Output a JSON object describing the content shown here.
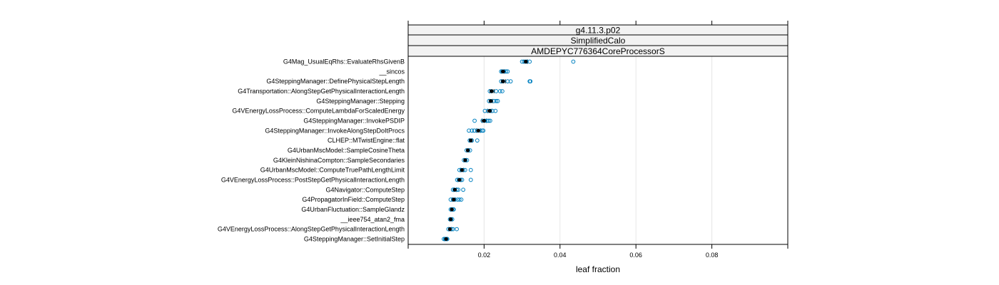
{
  "chart_data": {
    "type": "scatter",
    "strips": [
      "g4.11.3.p02",
      "SimplifiedCalo",
      "AMDEPYC776364CoreProcessorS"
    ],
    "xlabel": "leaf fraction",
    "xlim": [
      0.0,
      0.1
    ],
    "x_ticks": [
      0.02,
      0.04,
      0.06,
      0.08
    ],
    "x_tick_labels": [
      "0.02",
      "0.04",
      "0.06",
      "0.08"
    ],
    "grid": true,
    "colors": {
      "points": "#0080c0",
      "mean": "#000000",
      "grid": "#e6e6e6"
    },
    "rows": [
      {
        "label": "G4Mag_UsualEqRhs::EvaluateRhsGivenB",
        "mean": 0.031,
        "low": 0.0305,
        "high": 0.0315,
        "points": [
          0.03,
          0.0305,
          0.031,
          0.0312,
          0.032,
          0.0435
        ]
      },
      {
        "label": "__sincos",
        "mean": 0.025,
        "low": 0.0245,
        "high": 0.0255,
        "points": [
          0.0245,
          0.0248,
          0.0252,
          0.0258,
          0.0262
        ]
      },
      {
        "label": "G4SteppingManager::DefinePhysicalStepLength",
        "mean": 0.025,
        "low": 0.0245,
        "high": 0.0256,
        "points": [
          0.0245,
          0.025,
          0.0262,
          0.027,
          0.032,
          0.0322
        ]
      },
      {
        "label": "G4Transportation::AlongStepGetPhysicalInteractionLength",
        "mean": 0.022,
        "low": 0.0215,
        "high": 0.0226,
        "points": [
          0.0215,
          0.022,
          0.0232,
          0.0242,
          0.0248
        ]
      },
      {
        "label": "G4SteppingManager::Stepping",
        "mean": 0.0218,
        "low": 0.0213,
        "high": 0.0223,
        "points": [
          0.0213,
          0.0218,
          0.0226,
          0.0232,
          0.0236
        ]
      },
      {
        "label": "G4VEnergyLossProcess::ComputeLambdaForScaledEnergy",
        "mean": 0.0215,
        "low": 0.0209,
        "high": 0.022,
        "points": [
          0.0202,
          0.021,
          0.0216,
          0.0222,
          0.023
        ]
      },
      {
        "label": "G4SteppingManager::InvokePSDIP",
        "mean": 0.02,
        "low": 0.0194,
        "high": 0.0206,
        "points": [
          0.0175,
          0.0196,
          0.0202,
          0.0208,
          0.0212,
          0.0216
        ]
      },
      {
        "label": "G4SteppingManager::InvokeAlongStepDoItProcs",
        "mean": 0.0185,
        "low": 0.0179,
        "high": 0.0191,
        "points": [
          0.016,
          0.0168,
          0.0174,
          0.0182,
          0.019,
          0.0195,
          0.0198
        ]
      },
      {
        "label": "CLHEP::MTwistEngine::flat",
        "mean": 0.0165,
        "low": 0.0161,
        "high": 0.0169,
        "points": [
          0.0162,
          0.0165,
          0.0168,
          0.0182
        ]
      },
      {
        "label": "G4UrbanMscModel::SampleCosineTheta",
        "mean": 0.0157,
        "low": 0.0154,
        "high": 0.016,
        "points": [
          0.0154,
          0.0158,
          0.0163
        ]
      },
      {
        "label": "G4KleinNishinaCompton::SampleSecondaries",
        "mean": 0.015,
        "low": 0.0147,
        "high": 0.0153,
        "points": [
          0.0147,
          0.0151,
          0.0155
        ]
      },
      {
        "label": "G4UrbanMscModel::ComputeTruePathLengthLimit",
        "mean": 0.0142,
        "low": 0.0138,
        "high": 0.0146,
        "points": [
          0.0135,
          0.014,
          0.0145,
          0.015,
          0.0165
        ]
      },
      {
        "label": "G4VEnergyLossProcess::PostStepGetPhysicalInteractionLength",
        "mean": 0.0135,
        "low": 0.0131,
        "high": 0.0139,
        "points": [
          0.0129,
          0.0133,
          0.0138,
          0.0142,
          0.0165
        ]
      },
      {
        "label": "G4Navigator::ComputeStep",
        "mean": 0.0123,
        "low": 0.012,
        "high": 0.0127,
        "points": [
          0.0118,
          0.0122,
          0.0128,
          0.0132,
          0.0145
        ]
      },
      {
        "label": "G4PropagatorInField::ComputeStep",
        "mean": 0.012,
        "low": 0.0116,
        "high": 0.0124,
        "points": [
          0.0112,
          0.0118,
          0.0123,
          0.013,
          0.0135,
          0.014
        ]
      },
      {
        "label": "G4UrbanFluctuation::SampleGlandz",
        "mean": 0.0115,
        "low": 0.0112,
        "high": 0.0118,
        "points": [
          0.0112,
          0.0115,
          0.0118,
          0.012
        ]
      },
      {
        "label": "__ieee754_atan2_fma",
        "mean": 0.0112,
        "low": 0.011,
        "high": 0.0115,
        "points": [
          0.011,
          0.0113,
          0.0116
        ]
      },
      {
        "label": "G4VEnergyLossProcess::AlongStepGetPhysicalInteractionLength",
        "mean": 0.011,
        "low": 0.0107,
        "high": 0.0114,
        "points": [
          0.0106,
          0.011,
          0.0114,
          0.0118,
          0.0128
        ]
      },
      {
        "label": "G4SteppingManager::SetInitialStep",
        "mean": 0.01,
        "low": 0.0096,
        "high": 0.0103,
        "points": [
          0.0094,
          0.0097,
          0.0099,
          0.0101,
          0.0103
        ]
      }
    ]
  }
}
